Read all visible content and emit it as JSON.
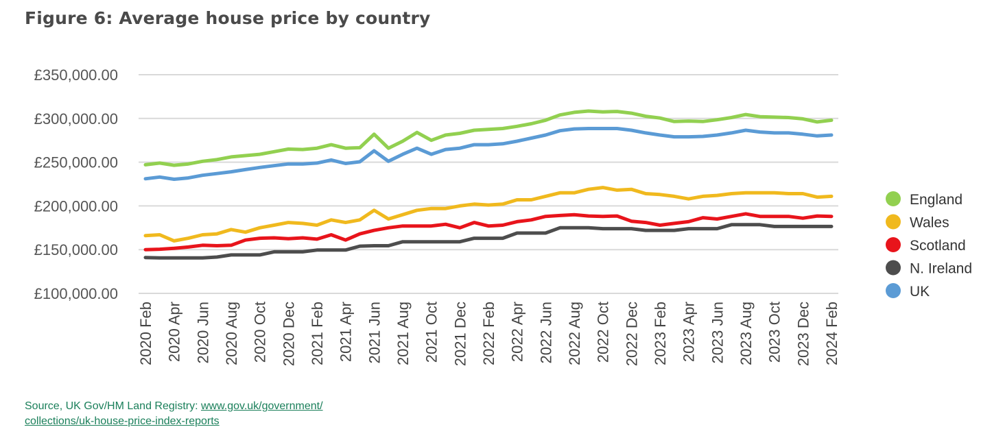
{
  "title": "Figure 6: Average house price by country",
  "source": {
    "prefix": "Source, UK Gov/HM Land Registry: ",
    "link_line1": "www.gov.uk/government/",
    "link_line2": "collections/uk-house-price-index-reports"
  },
  "chart_data": {
    "type": "line",
    "title": "Figure 6: Average house price by country",
    "xlabel": "",
    "ylabel": "",
    "ylim": [
      100000,
      350000
    ],
    "yticks": [
      100000,
      150000,
      200000,
      250000,
      300000,
      350000
    ],
    "ytick_labels": [
      "£100,000.00",
      "£150,000.00",
      "£200,000.00",
      "£250,000.00",
      "£300,000.00",
      "£350,000.00"
    ],
    "grid": "horizontal",
    "legend_position": "right",
    "x": [
      "2020 Feb",
      "2020 Mar",
      "2020 Apr",
      "2020 May",
      "2020 Jun",
      "2020 Jul",
      "2020 Aug",
      "2020 Sep",
      "2020 Oct",
      "2020 Nov",
      "2020 Dec",
      "2021 Jan",
      "2021 Feb",
      "2021 Mar",
      "2021 Apr",
      "2021 May",
      "2021 Jun",
      "2021 Jul",
      "2021 Aug",
      "2021 Sep",
      "2021 Oct",
      "2021 Nov",
      "2021 Dec",
      "2022 Jan",
      "2022 Feb",
      "2022 Mar",
      "2022 Apr",
      "2022 May",
      "2022 Jun",
      "2022 Jul",
      "2022 Aug",
      "2022 Sep",
      "2022 Oct",
      "2022 Nov",
      "2022 Dec",
      "2023 Jan",
      "2023 Feb",
      "2023 Mar",
      "2023 Apr",
      "2023 May",
      "2023 Jun",
      "2023 Jul",
      "2023 Aug",
      "2023 Sep",
      "2023 Oct",
      "2023 Nov",
      "2023 Dec",
      "2024 Jan",
      "2024 Feb"
    ],
    "x_tick_labels": [
      "2020 Feb",
      "2020 Apr",
      "2020 Jun",
      "2020 Aug",
      "2020 Oct",
      "2020 Dec",
      "2021 Feb",
      "2021 Apr",
      "2021 Jun",
      "2021 Aug",
      "2021 Oct",
      "2021 Dec",
      "2022 Feb",
      "2022 Apr",
      "2022 Jun",
      "2022 Aug",
      "2022 Oct",
      "2022 Dec",
      "2023 Feb",
      "2023 Apr",
      "2023 Jun",
      "2023 Aug",
      "2023 Oct",
      "2023 Dec",
      "2024 Feb"
    ],
    "series": [
      {
        "name": "England",
        "color": "#92d050",
        "values": [
          247000,
          249000,
          246500,
          248000,
          251000,
          253000,
          256000,
          257500,
          259000,
          262000,
          265000,
          264500,
          266000,
          270000,
          266000,
          266500,
          282000,
          266000,
          274000,
          284000,
          275000,
          281000,
          283000,
          286500,
          287500,
          288500,
          291000,
          294000,
          298000,
          304000,
          307000,
          308500,
          307500,
          308000,
          306000,
          302500,
          300500,
          296500,
          297000,
          296500,
          298500,
          301000,
          304500,
          302000,
          301500,
          301000,
          299500,
          296000,
          298000
        ]
      },
      {
        "name": "Wales",
        "color": "#f0b91e",
        "values": [
          166000,
          167000,
          160000,
          163000,
          167000,
          168000,
          173000,
          170000,
          175000,
          178000,
          181000,
          180000,
          178000,
          184000,
          181000,
          184000,
          195000,
          185000,
          190000,
          195000,
          197000,
          197000,
          200000,
          202000,
          201000,
          202000,
          207000,
          207000,
          211000,
          215000,
          215000,
          219000,
          221000,
          218000,
          219000,
          214000,
          213000,
          211000,
          208000,
          211000,
          212000,
          214000,
          215000,
          215000,
          215000,
          214000,
          214000,
          210000,
          211000
        ]
      },
      {
        "name": "Scotland",
        "color": "#e8141b",
        "values": [
          150000,
          150500,
          151500,
          153000,
          155000,
          154500,
          155000,
          161000,
          163000,
          163500,
          162500,
          163500,
          162000,
          167000,
          161000,
          168000,
          172000,
          175000,
          177000,
          177000,
          177000,
          179000,
          175000,
          181000,
          177000,
          178000,
          182000,
          184000,
          188000,
          189000,
          190000,
          188500,
          188000,
          188500,
          182500,
          181000,
          178000,
          180000,
          182000,
          186500,
          185000,
          188000,
          191000,
          188000,
          188000,
          188000,
          186000,
          188500,
          188000
        ]
      },
      {
        "name": "N. Ireland",
        "color": "#4d4d4d",
        "values": [
          141000,
          140500,
          140500,
          140500,
          140500,
          141500,
          144000,
          144000,
          144000,
          147500,
          147500,
          147500,
          149500,
          149500,
          149500,
          154000,
          154500,
          154500,
          159000,
          159000,
          159000,
          159000,
          159000,
          163000,
          163000,
          163000,
          169000,
          169000,
          169000,
          175000,
          175000,
          175000,
          174000,
          174000,
          174000,
          172000,
          172000,
          172000,
          174000,
          174000,
          174000,
          178500,
          178500,
          178500,
          176500,
          176500,
          176500,
          176500,
          176500
        ]
      },
      {
        "name": "UK",
        "color": "#5b9bd5",
        "values": [
          231000,
          233000,
          230500,
          232000,
          235000,
          237000,
          239000,
          241500,
          244000,
          246000,
          248000,
          248000,
          249000,
          252500,
          248500,
          250500,
          263000,
          251000,
          259000,
          266000,
          259000,
          264500,
          266000,
          270000,
          270000,
          271000,
          274000,
          277500,
          281000,
          286000,
          288000,
          288500,
          288500,
          288500,
          286500,
          283500,
          281000,
          279000,
          279000,
          279500,
          281000,
          283500,
          286500,
          284500,
          283500,
          283500,
          282000,
          280000,
          281000
        ]
      }
    ]
  }
}
